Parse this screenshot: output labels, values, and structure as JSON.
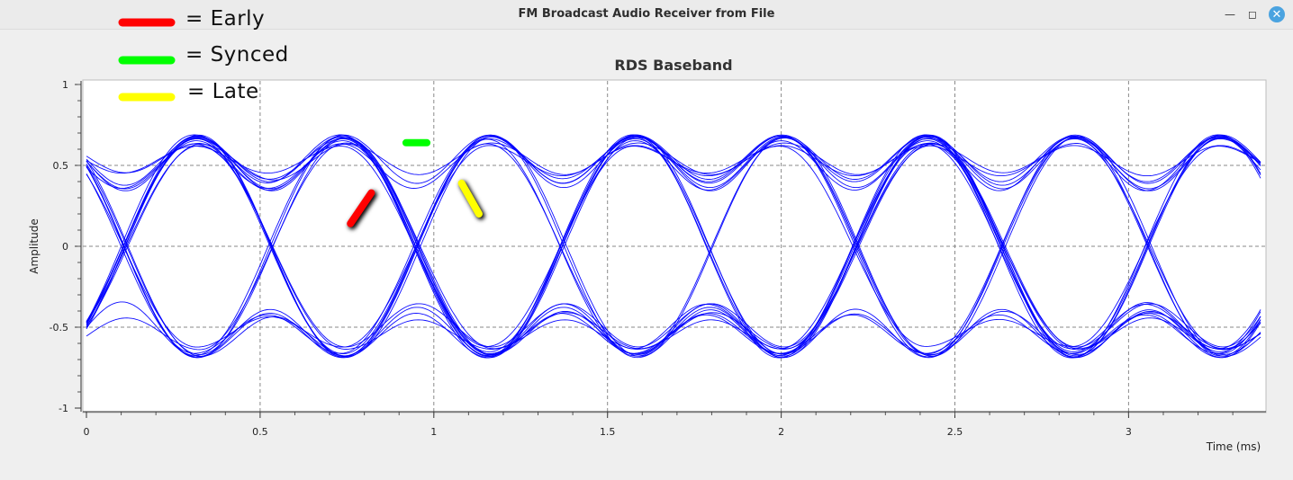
{
  "window": {
    "title": "FM Broadcast Audio Receiver from File",
    "minimize_icon": "minimize-icon",
    "maximize_icon": "maximize-icon",
    "close_icon": "close-icon"
  },
  "legend": {
    "items": [
      {
        "label": "= Early",
        "color": "#ff0000"
      },
      {
        "label": "= Synced",
        "color": "#00ff00"
      },
      {
        "label": "= Late",
        "color": "#ffff00"
      }
    ]
  },
  "chart_data": {
    "type": "line",
    "title": "RDS Baseband",
    "xlabel": "Time (ms)",
    "ylabel": "Amplitude",
    "xlim": [
      0,
      3.38
    ],
    "ylim": [
      -1,
      1
    ],
    "x_ticks": [
      "0",
      "0.5",
      "1",
      "1.5",
      "2",
      "2.5",
      "3"
    ],
    "y_ticks": [
      "1",
      "0.5",
      "0",
      "-0.5",
      "-1"
    ],
    "grid": true,
    "line_color": "#0000ff",
    "symbol_period_ms": 0.421,
    "zero_crossings_ms": [
      0.32,
      0.74,
      1.16,
      1.58,
      2.0,
      2.42,
      2.84,
      3.26
    ],
    "peak_amplitude": 0.68,
    "midlevel_amplitude": 0.4,
    "markers": [
      {
        "name": "Early",
        "color": "#ff0000",
        "x": [
          0.76,
          0.82
        ],
        "y": [
          0.14,
          0.33
        ]
      },
      {
        "name": "Synced",
        "color": "#00ff00",
        "x": [
          0.92,
          0.98
        ],
        "y": [
          0.64,
          0.64
        ]
      },
      {
        "name": "Late",
        "color": "#ffff00",
        "x": [
          1.08,
          1.13
        ],
        "y": [
          0.39,
          0.2
        ]
      }
    ]
  }
}
